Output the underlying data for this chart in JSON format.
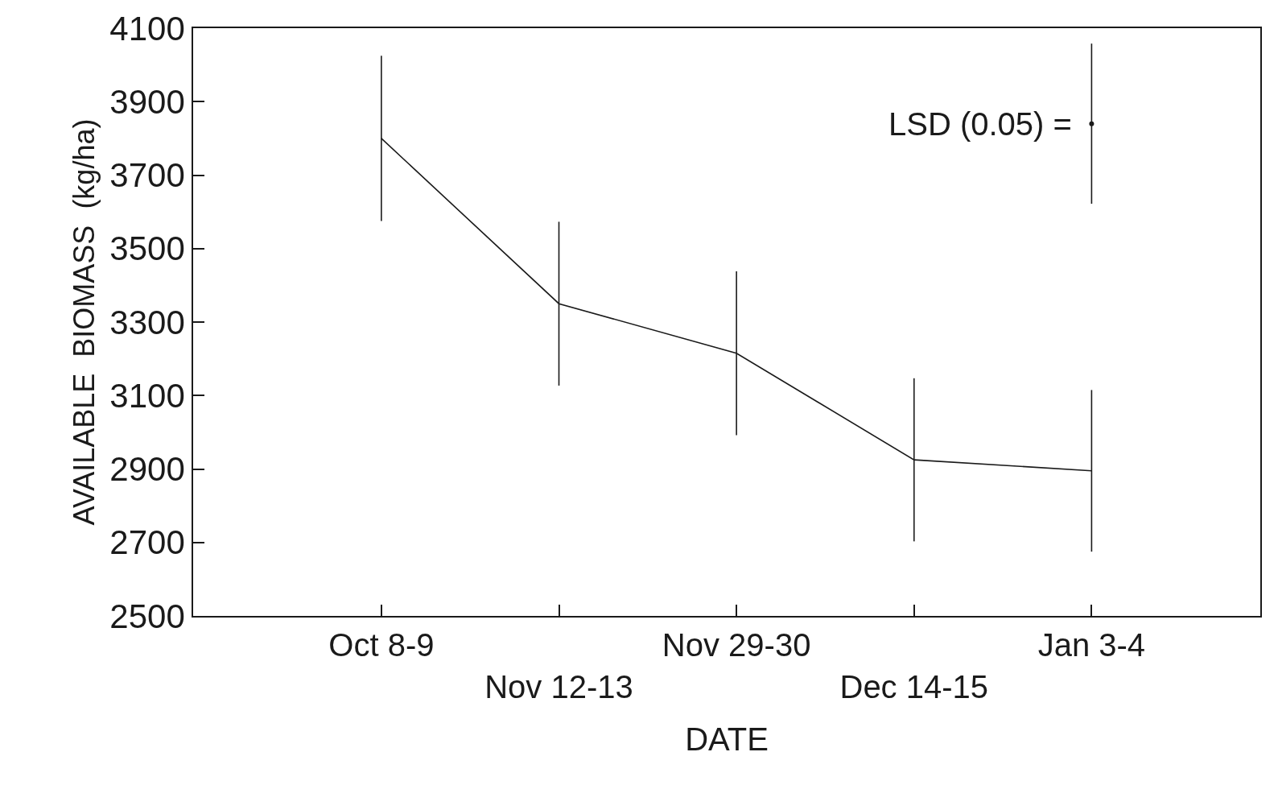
{
  "chart_data": {
    "type": "line",
    "xlabel": "DATE",
    "ylabel": "AVAILABLE  BIOMASS  (kg/ha)",
    "categories": [
      "Oct 8-9",
      "Nov 12-13",
      "Nov 29-30",
      "Dec 14-15",
      "Jan 3-4"
    ],
    "series": [
      {
        "color": "#1a1a1a",
        "values": [
          3800,
          3350,
          3215,
          2925,
          2895
        ],
        "errors": [
          225,
          223,
          223,
          222,
          220
        ]
      },
      {
        "type": "scatter",
        "color": "#1a1a1a",
        "x": [
          "Jan 3-4"
        ],
        "values": [
          3840
        ],
        "errors": [
          218
        ]
      }
    ],
    "annotations": [
      {
        "text": "LSD (0.05) =",
        "x": "Jan 3-4",
        "y": 3840
      }
    ],
    "ylim": [
      2500,
      4100
    ],
    "yticks": [
      2500,
      2700,
      2900,
      3100,
      3300,
      3500,
      3700,
      3900,
      4100
    ],
    "marker": "none",
    "line_style": "solid"
  }
}
